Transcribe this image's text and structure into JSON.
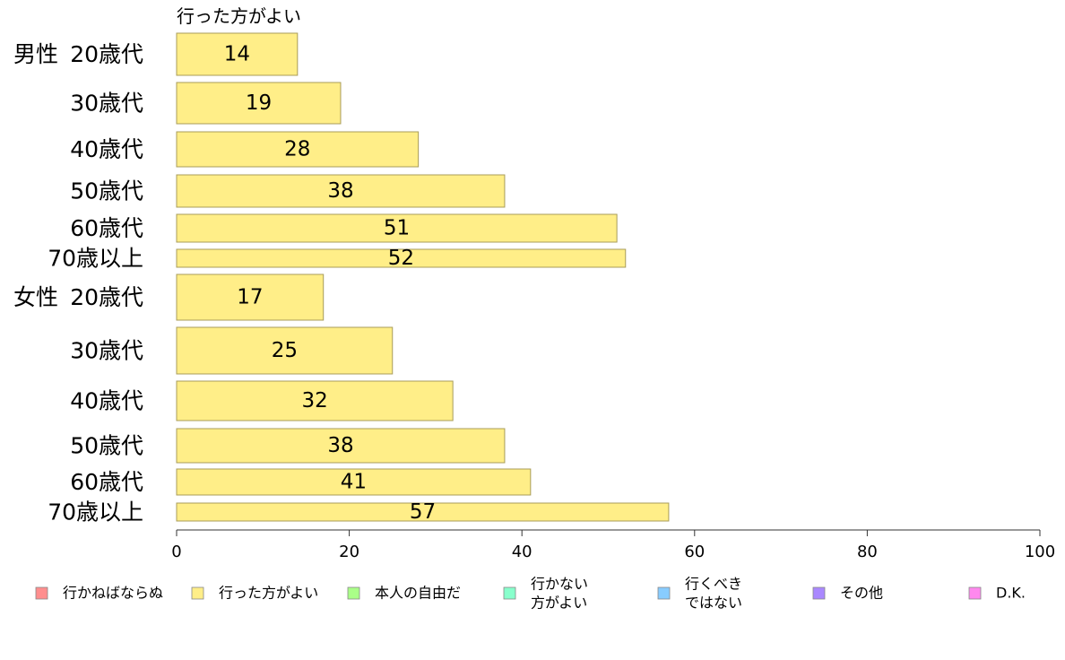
{
  "chart_data": {
    "type": "bar",
    "orientation": "horizontal",
    "column_title": "行った方がよい",
    "groups": [
      {
        "label": "男性",
        "rows": [
          {
            "label": "20歳代",
            "value": 14
          },
          {
            "label": "30歳代",
            "value": 19
          },
          {
            "label": "40歳代",
            "value": 28
          },
          {
            "label": "50歳代",
            "value": 38
          },
          {
            "label": "60歳代",
            "value": 51
          },
          {
            "label": "70歳以上",
            "value": 52
          }
        ]
      },
      {
        "label": "女性",
        "rows": [
          {
            "label": "20歳代",
            "value": 17
          },
          {
            "label": "30歳代",
            "value": 25
          },
          {
            "label": "40歳代",
            "value": 32
          },
          {
            "label": "50歳代",
            "value": 38
          },
          {
            "label": "60歳代",
            "value": 41
          },
          {
            "label": "70歳以上",
            "value": 57
          }
        ]
      }
    ],
    "xlim": [
      0,
      100
    ],
    "xticks": [
      0,
      20,
      40,
      60,
      80,
      100
    ],
    "grid": false,
    "legend_position": "bottom",
    "bar_color": "#ffee88",
    "legend": [
      {
        "label": "行かねばならぬ",
        "color": "#ff8e8e"
      },
      {
        "label": "行った方がよい",
        "color": "#ffee88"
      },
      {
        "label": "本人の自由だ",
        "color": "#aaff88"
      },
      {
        "label": "行かない\n方がよい",
        "color": "#88ffcc"
      },
      {
        "label": "行くべき\nではない",
        "color": "#88ccff"
      },
      {
        "label": "その他",
        "color": "#aa88ff"
      },
      {
        "label": "D.K.",
        "color": "#ff88ee"
      }
    ]
  }
}
